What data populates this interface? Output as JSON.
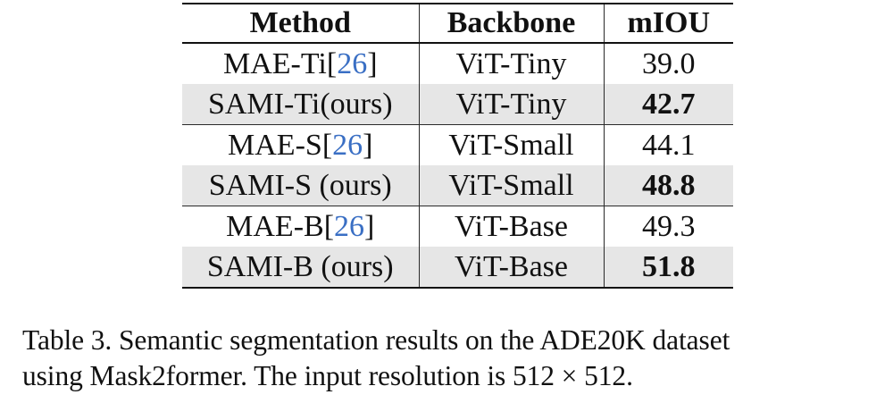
{
  "table": {
    "headers": [
      "Method",
      "Backbone",
      "mIOU"
    ],
    "rows": [
      {
        "method": "MAE-Ti",
        "cite": "26",
        "backbone": "ViT-Tiny",
        "miou": "39.0"
      },
      {
        "method": "SAMI-Ti(ours)",
        "cite": "",
        "backbone": "ViT-Tiny",
        "miou": "42.7"
      },
      {
        "method": "MAE-S",
        "cite": "26",
        "backbone": "ViT-Small",
        "miou": "44.1"
      },
      {
        "method": "SAMI-S (ours)",
        "cite": "",
        "backbone": "ViT-Small",
        "miou": "48.8"
      },
      {
        "method": "MAE-B",
        "cite": "26",
        "backbone": "ViT-Base",
        "miou": "49.3"
      },
      {
        "method": "SAMI-B (ours)",
        "cite": "",
        "backbone": "ViT-Base",
        "miou": "51.8"
      }
    ]
  },
  "caption": {
    "line1": "Table 3.  Semantic segmentation results on the ADE20K dataset",
    "line2": "using Mask2former. The input resolution is 512 × 512."
  },
  "colors": {
    "shaded_row": "#e6e6e6",
    "citation": "#3a6fc4"
  }
}
